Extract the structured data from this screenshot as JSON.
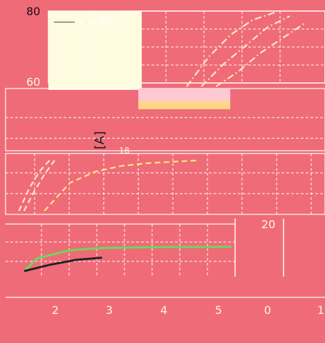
{
  "colors": {
    "background": "#ef6b78",
    "grid": "#ffffff",
    "curve_light": "#ffe9c4",
    "curve_yellow": "#ffe97a",
    "curve_green": "#6cd85c",
    "curve_dark": "#222222",
    "legend_bg": "#fffbe0",
    "patch_pink": "#ffc9d3",
    "patch_orange": "#ffd58a"
  },
  "chart_data": [
    {
      "type": "line",
      "panel": "top",
      "y_ticks": [
        "80",
        "60"
      ],
      "legend": {
        "entries": [
          "V  =9V"
        ]
      },
      "series": [
        {
          "style": "dash-dot",
          "color": "#ffe9c4",
          "x": [
            0.0,
            0.3,
            0.6,
            0.9,
            1.2
          ],
          "y": [
            60,
            68,
            74,
            78,
            80
          ]
        },
        {
          "style": "dash-dot",
          "color": "#ffe9c4",
          "x": [
            0.2,
            0.5,
            0.8,
            1.1,
            1.4
          ],
          "y": [
            60,
            66,
            71,
            76,
            79
          ]
        },
        {
          "style": "dash-dot",
          "color": "#ffe9c4",
          "x": [
            0.4,
            0.7,
            1.0,
            1.3,
            1.6
          ],
          "y": [
            60,
            64,
            69,
            73,
            77
          ]
        }
      ]
    },
    {
      "type": "line",
      "panel": "middle",
      "y_tick_text": "18",
      "ylabel": "[A]",
      "series": [
        {
          "style": "dashed",
          "color": "#ffe97a",
          "x": [
            2.0,
            2.5,
            3.0,
            3.5,
            4.0,
            4.5,
            5.0
          ],
          "y": [
            0,
            10,
            14,
            16,
            17,
            17.5,
            18
          ]
        },
        {
          "style": "dashed",
          "color": "#ffe9c4",
          "x": [
            1.5,
            1.7,
            1.9,
            2.1
          ],
          "y": [
            0,
            8,
            14,
            18
          ]
        },
        {
          "style": "dashed",
          "color": "#ffe9c4",
          "x": [
            1.6,
            1.8,
            2.0,
            2.2
          ],
          "y": [
            0,
            7,
            13,
            18
          ]
        }
      ]
    },
    {
      "type": "line",
      "panel": "bottom",
      "x_ticks": [
        "2",
        "3",
        "4",
        "5",
        "0",
        "1"
      ],
      "right_tick_text": "20",
      "series": [
        {
          "style": "solid",
          "color": "#6cd85c",
          "x": [
            1.8,
            2.0,
            2.5,
            3.0,
            3.5,
            4.0,
            5.0
          ],
          "y": [
            0,
            4,
            6.5,
            7.2,
            7.4,
            7.5,
            7.6
          ]
        },
        {
          "style": "solid",
          "color": "#222222",
          "x": [
            1.8,
            2.2,
            2.6,
            3.0
          ],
          "y": [
            0,
            2,
            3.5,
            4.2
          ]
        }
      ]
    }
  ]
}
